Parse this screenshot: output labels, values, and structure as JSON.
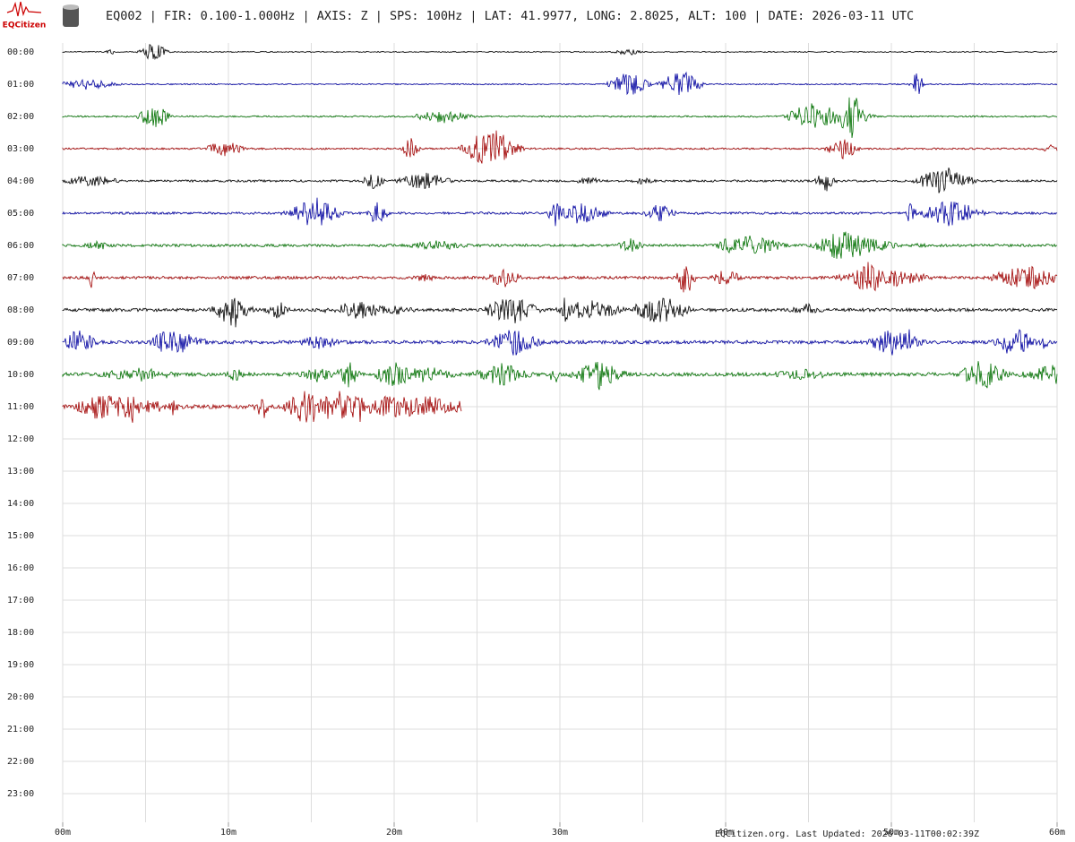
{
  "logo_text": "EQCitizen",
  "chart_data": {
    "type": "helicorder",
    "title": "EQ002 | FIR: 0.100-1.000Hz | AXIS: Z | SPS: 100Hz | LAT: 41.9977, LONG: 2.8025, ALT: 100 | DATE: 2026-03-11 UTC",
    "footer": "EQCitizen.org. Last Updated: 2026-03-11T00:02:39Z",
    "rows": [
      "00:00",
      "01:00",
      "02:00",
      "03:00",
      "04:00",
      "05:00",
      "06:00",
      "07:00",
      "08:00",
      "09:00",
      "10:00",
      "11:00",
      "12:00",
      "13:00",
      "14:00",
      "15:00",
      "16:00",
      "17:00",
      "18:00",
      "19:00",
      "20:00",
      "21:00",
      "22:00",
      "23:00"
    ],
    "xlim": [
      0,
      60
    ],
    "xticks": [
      {
        "value": 0,
        "label": "00m"
      },
      {
        "value": 10,
        "label": "10m"
      },
      {
        "value": 20,
        "label": "20m"
      },
      {
        "value": 30,
        "label": "30m"
      },
      {
        "value": 40,
        "label": "40m"
      },
      {
        "value": 50,
        "label": "50m"
      },
      {
        "value": 60,
        "label": "60m"
      }
    ],
    "xgrid": [
      0,
      5,
      10,
      15,
      20,
      25,
      30,
      35,
      40,
      45,
      50,
      55,
      60
    ],
    "grid": true,
    "traces": [
      {
        "row": 0,
        "color": "#000000",
        "xrange": [
          0,
          60
        ]
      },
      {
        "row": 1,
        "color": "#0000a0",
        "xrange": [
          0,
          60
        ]
      },
      {
        "row": 2,
        "color": "#007000",
        "xrange": [
          0,
          60
        ]
      },
      {
        "row": 3,
        "color": "#a00000",
        "xrange": [
          0,
          60
        ]
      },
      {
        "row": 4,
        "color": "#000000",
        "xrange": [
          0,
          60
        ]
      },
      {
        "row": 5,
        "color": "#0000a0",
        "xrange": [
          0,
          60
        ]
      },
      {
        "row": 6,
        "color": "#007000",
        "xrange": [
          0,
          60
        ]
      },
      {
        "row": 7,
        "color": "#a00000",
        "xrange": [
          0,
          60
        ]
      },
      {
        "row": 8,
        "color": "#000000",
        "xrange": [
          0,
          60
        ]
      },
      {
        "row": 9,
        "color": "#0000a0",
        "xrange": [
          0,
          60
        ]
      },
      {
        "row": 10,
        "color": "#007000",
        "xrange": [
          0,
          60
        ]
      },
      {
        "row": 11,
        "color": "#a00000",
        "xrange": [
          0,
          24.1
        ]
      }
    ]
  }
}
